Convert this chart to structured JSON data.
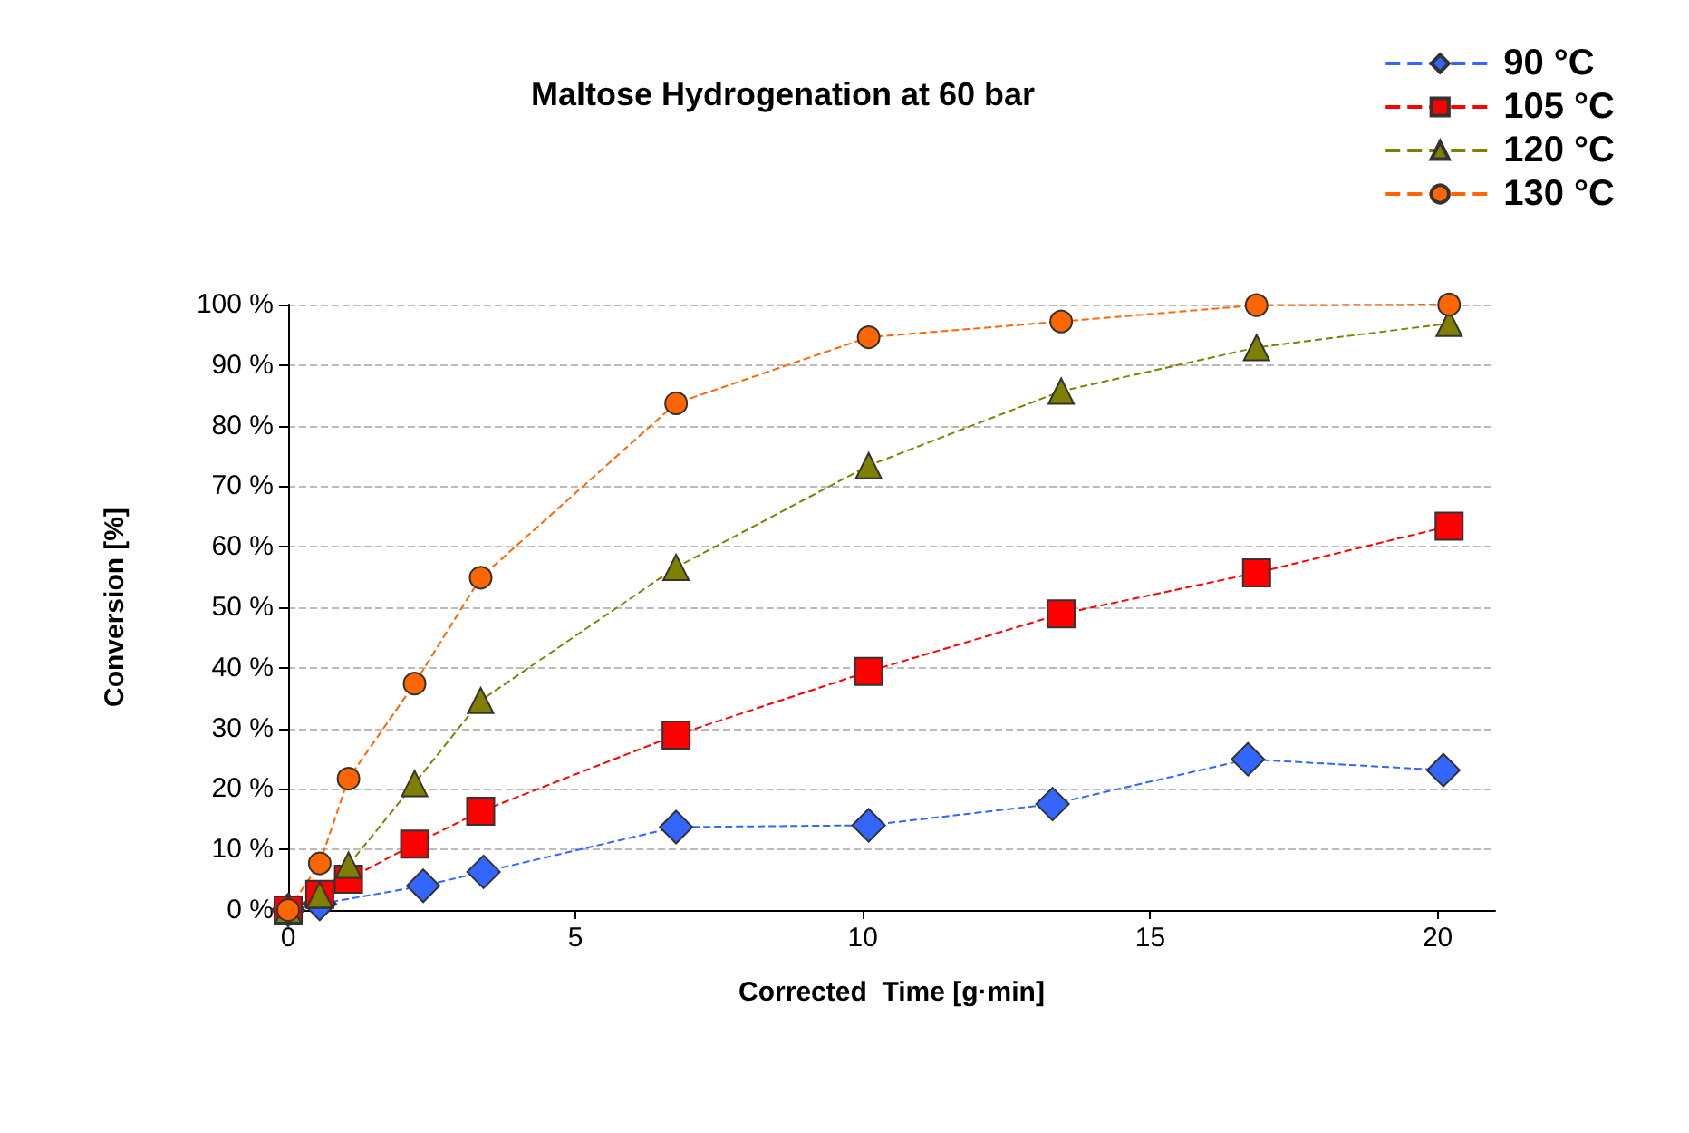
{
  "chart_data": {
    "type": "line",
    "title": "Maltose Hydrogenation at 60 bar",
    "xlabel": "Corrected  Time [g·min]",
    "ylabel": "Conversion [%]",
    "xlim": [
      0,
      21
    ],
    "xticks": [
      0,
      5,
      10,
      15,
      20
    ],
    "ylim": [
      0,
      100
    ],
    "yticks": [
      {
        "value": 0,
        "label": "0 %"
      },
      {
        "value": 10,
        "label": "10 %"
      },
      {
        "value": 20,
        "label": "20 %"
      },
      {
        "value": 30,
        "label": "30 %"
      },
      {
        "value": 40,
        "label": "40 %"
      },
      {
        "value": 50,
        "label": "50 %"
      },
      {
        "value": 60,
        "label": "60 %"
      },
      {
        "value": 70,
        "label": "70 %"
      },
      {
        "value": 80,
        "label": "80 %"
      },
      {
        "value": 90,
        "label": "90 %"
      },
      {
        "value": 100,
        "label": "100 %"
      }
    ],
    "grid": "y",
    "legend": "top right",
    "line_style": "dashed",
    "series": [
      {
        "name": "90 °C",
        "color": "#3366ff",
        "marker": "diamond",
        "x": [
          0,
          0.55,
          2.35,
          3.4,
          6.75,
          10.1,
          13.3,
          16.7,
          20.1
        ],
        "values": [
          0,
          1,
          4,
          6.3,
          13.7,
          14,
          17.5,
          24.9,
          23.1
        ]
      },
      {
        "name": "105 °C",
        "color": "#ff0000",
        "marker": "square",
        "x": [
          0,
          0.55,
          1.05,
          2.2,
          3.35,
          6.75,
          10.1,
          13.45,
          16.85,
          20.2
        ],
        "values": [
          0,
          2.6,
          5.1,
          10.9,
          16.3,
          28.9,
          39.4,
          48.9,
          55.7,
          63.4
        ]
      },
      {
        "name": "120 °C",
        "color": "#808000",
        "marker": "triangle",
        "x": [
          0,
          0.55,
          1.05,
          2.2,
          3.35,
          6.75,
          10.1,
          13.45,
          16.85,
          20.2
        ],
        "values": [
          0,
          2.5,
          7.4,
          20.9,
          34.6,
          56.6,
          73.4,
          85.7,
          92.9,
          96.9
        ]
      },
      {
        "name": "130 °C",
        "color": "#ff6600",
        "marker": "circle",
        "x": [
          0,
          0.55,
          1.05,
          2.2,
          3.35,
          6.75,
          10.1,
          13.45,
          16.85,
          20.2
        ],
        "values": [
          0,
          7.7,
          21.7,
          37.4,
          54.9,
          83.7,
          94.6,
          97.2,
          99.9,
          100
        ]
      }
    ]
  }
}
